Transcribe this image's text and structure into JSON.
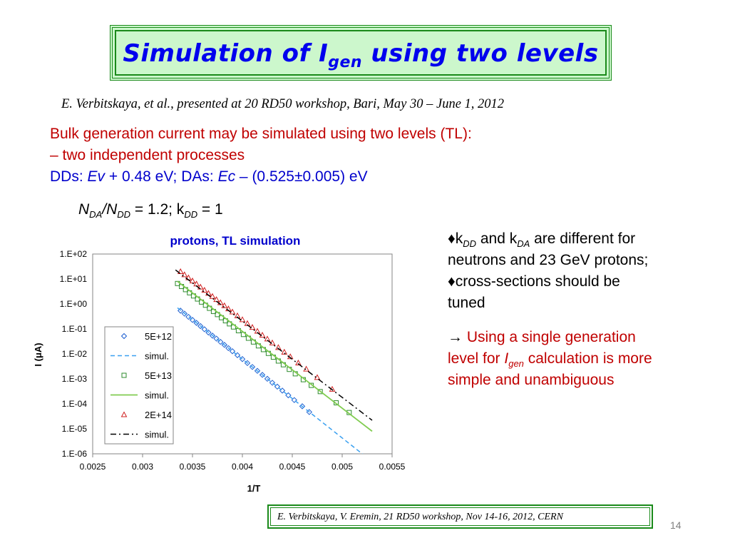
{
  "slide": {
    "title_main": "Simulation of I",
    "title_sub": "gen",
    "title_rest": " using two levels",
    "citation": "E. Verbitskaya, et al., presented at 20 RD50 workshop, Bari, May 30 – June 1, 2012",
    "line1": "Bulk generation current may be simulated using two levels (TL):",
    "line2": "– two independent processes",
    "line3_a": "DDs: ",
    "line3_b": "Ev",
    "line3_c": " + 0.48 eV; DAs: ",
    "line3_d": "Ec",
    "line3_e": " – (0.525±0.005) eV",
    "ratio_parts": [
      "N",
      "DA",
      "/N",
      "DD",
      " = 1.2; k",
      "DD",
      " = 1"
    ],
    "bullet1_parts": [
      "♦k",
      "DD",
      " and k",
      "DA",
      " are different for"
    ],
    "bullet1_line2": "neutrons and 23 GeV protons;",
    "bullet2_line1": "♦cross-sections should be",
    "bullet2_line2": "tuned",
    "arrow_line1_a": "→ ",
    "arrow_line1_b": "Using a single generation",
    "arrow_line2_a": "level for ",
    "arrow_line2_b": "I",
    "arrow_line2_c": "gen",
    "arrow_line2_d": " calculation is more",
    "arrow_line3": "simple and unambiguous",
    "footer": "E. Verbitskaya, V. Eremin, 21 RD50 workshop, Nov 14-16, 2012, CERN",
    "page_number": "14"
  },
  "colors": {
    "title_blue": "#0000ee",
    "red_text": "#c00000",
    "blue_text": "#0000cc",
    "green_frame": "#1a8a1a",
    "series_blue": "#1f5fd0",
    "series_green": "#2e8b2e",
    "series_red": "#d02020",
    "sim_blue": "#3aa0f0",
    "sim_green": "#80cc50",
    "sim_black": "#000000"
  },
  "chart_data": {
    "type": "scatter",
    "title": "protons, TL simulation",
    "xlabel": "1/T",
    "ylabel": "I (μA)",
    "xlim": [
      0.0025,
      0.0055
    ],
    "ylim": [
      1e-06,
      100
    ],
    "yscale": "log",
    "grid": true,
    "legend_position": "lower-left",
    "xticks": [
      "0.0025",
      "0.003",
      "0.0035",
      "0.004",
      "0.0045",
      "0.005",
      "0.0055"
    ],
    "yticks": [
      "1.E-06",
      "1.E-05",
      "1.E-04",
      "1.E-03",
      "1.E-02",
      "1.E-01",
      "1.E+00",
      "1.E+01",
      "1.E+02"
    ],
    "series": [
      {
        "name": "5E+12",
        "kind": "markers",
        "marker": "diamond",
        "color": "#1f5fd0",
        "x": [
          0.00338,
          0.00342,
          0.00346,
          0.0035,
          0.00354,
          0.00358,
          0.00362,
          0.00366,
          0.0037,
          0.00374,
          0.00378,
          0.00382,
          0.00386,
          0.0039,
          0.00395,
          0.004,
          0.00405,
          0.0041,
          0.00415,
          0.0042,
          0.00425,
          0.0043,
          0.00435,
          0.0044,
          0.00446,
          0.00452,
          0.0046,
          0.00467
        ],
        "y": [
          0.54,
          0.41,
          0.305,
          0.23,
          0.175,
          0.13,
          0.097,
          0.072,
          0.054,
          0.041,
          0.0305,
          0.023,
          0.017,
          0.0128,
          0.0089,
          0.0062,
          0.0043,
          0.003,
          0.0021,
          0.00145,
          0.00101,
          0.0007,
          0.00049,
          0.00034,
          0.00022,
          0.000142,
          8e-05,
          4.7e-05
        ]
      },
      {
        "name": "simul.",
        "kind": "line",
        "dash": "dash",
        "color": "#3aa0f0",
        "x": [
          0.00335,
          0.00525
        ],
        "y": [
          0.7,
          7e-07
        ]
      },
      {
        "name": "5E+13",
        "kind": "markers",
        "marker": "square",
        "color": "#2e8b2e",
        "x": [
          0.00335,
          0.00339,
          0.00343,
          0.00347,
          0.00351,
          0.00355,
          0.00359,
          0.00363,
          0.00367,
          0.00371,
          0.00375,
          0.00379,
          0.00383,
          0.00387,
          0.00391,
          0.00396,
          0.00401,
          0.00406,
          0.00411,
          0.00416,
          0.00421,
          0.00426,
          0.00431,
          0.00436,
          0.00441,
          0.00447,
          0.00453,
          0.00461,
          0.00469,
          0.00478,
          0.00494,
          0.00507
        ],
        "y": [
          6.6,
          5.0,
          3.75,
          2.8,
          2.1,
          1.58,
          1.19,
          0.89,
          0.67,
          0.5,
          0.376,
          0.282,
          0.212,
          0.16,
          0.12,
          0.085,
          0.06,
          0.0425,
          0.03,
          0.021,
          0.0149,
          0.0105,
          0.0074,
          0.0052,
          0.00368,
          0.0024,
          0.0016,
          0.00093,
          0.00055,
          0.00031,
          0.00011,
          4.5e-05
        ]
      },
      {
        "name": "simul.",
        "kind": "line",
        "dash": "solid",
        "color": "#80cc50",
        "x": [
          0.00335,
          0.0053
        ],
        "y": [
          8.0,
          8e-06
        ]
      },
      {
        "name": "2E+14",
        "kind": "markers",
        "marker": "triangle",
        "color": "#d02020",
        "x": [
          0.00338,
          0.00342,
          0.00346,
          0.0035,
          0.00354,
          0.00358,
          0.00362,
          0.00366,
          0.0037,
          0.00374,
          0.00378,
          0.00382,
          0.00386,
          0.0039,
          0.00395,
          0.004,
          0.00405,
          0.0041,
          0.00415,
          0.0042,
          0.00425,
          0.0043,
          0.00436,
          0.00442,
          0.00448,
          0.00456,
          0.00464,
          0.00475,
          0.0049
        ],
        "y": [
          20,
          15,
          11.3,
          8.5,
          6.4,
          4.8,
          3.6,
          2.7,
          2.03,
          1.52,
          1.14,
          0.86,
          0.645,
          0.485,
          0.34,
          0.238,
          0.167,
          0.117,
          0.082,
          0.057,
          0.04,
          0.028,
          0.0183,
          0.0119,
          0.0078,
          0.0044,
          0.0025,
          0.00115,
          0.00039
        ]
      },
      {
        "name": "simul.",
        "kind": "line",
        "dash": "dashdot",
        "color": "#000000",
        "x": [
          0.00333,
          0.0053
        ],
        "y": [
          23,
          2.2e-05
        ]
      }
    ]
  }
}
